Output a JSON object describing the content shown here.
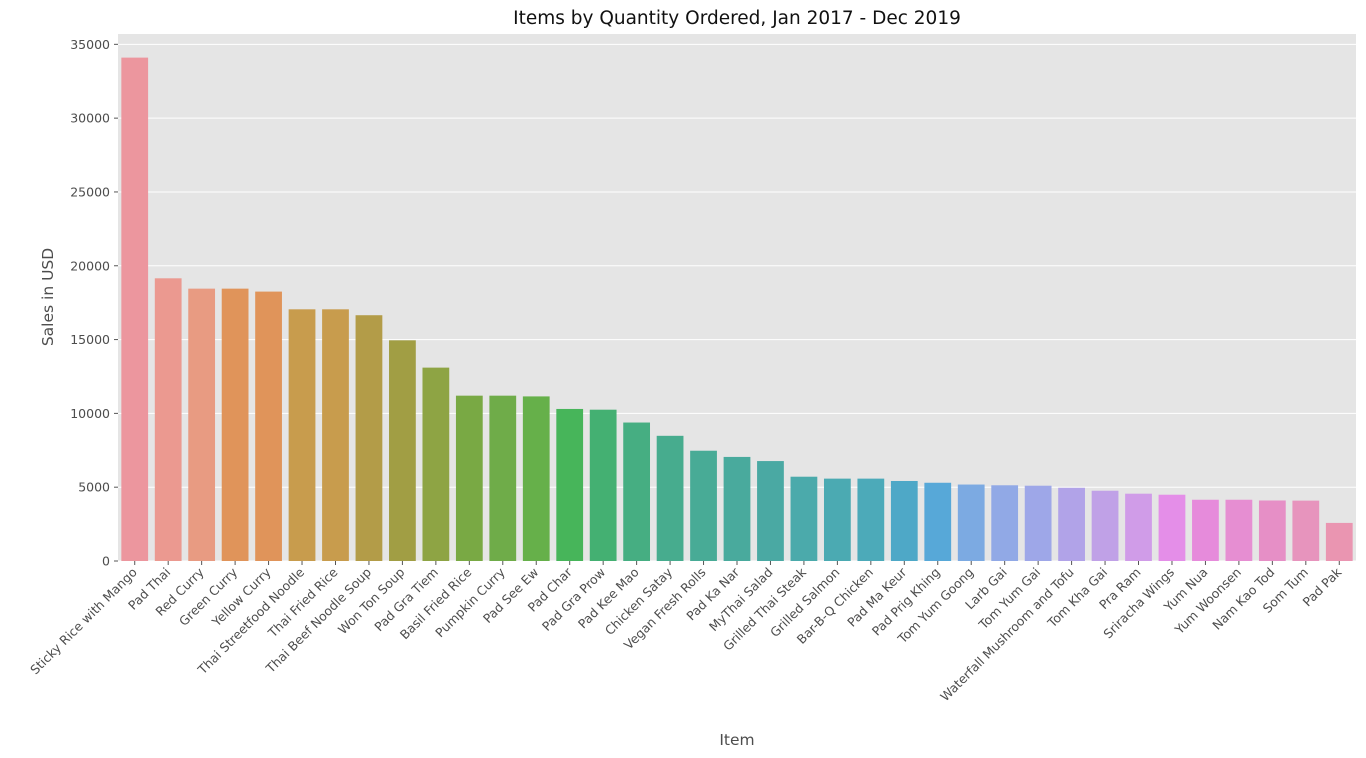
{
  "chart_data": {
    "type": "bar",
    "title": "Items by Quantity Ordered, Jan 2017 - Dec 2019",
    "xlabel": "Item",
    "ylabel": "Sales in USD",
    "ylim": [
      0,
      35700
    ],
    "yticks": [
      0,
      5000,
      10000,
      15000,
      20000,
      25000,
      30000,
      35000
    ],
    "grid": true,
    "legend": "none",
    "categories": [
      "Sticky Rice with Mango",
      "Pad Thai",
      "Red Curry",
      "Green Curry",
      "Yellow Curry",
      "Thai Streetfood Noodle",
      "Thai Fried Rice",
      "Thai Beef Noodle Soup",
      "Won Ton Soup",
      "Pad Gra Tiem",
      "Basil Fried Rice",
      "Pumpkin Curry",
      "Pad See Ew",
      "Pad Char",
      "Pad Gra Prow",
      "Pad Kee Mao",
      "Chicken Satay",
      "Vegan Fresh Rolls",
      "Pad Ka Nar",
      "MyThai Salad",
      "Grilled Thai Steak",
      "Grilled Salmon",
      "Bar-B-Q Chicken",
      "Pad Ma Keur",
      "Pad Prig Khing",
      "Tom Yum Goong",
      "Larb Gai",
      "Tom Yum Gai",
      "Waterfall Mushroom and Tofu",
      "Tom Kha Gai",
      "Pra Ram",
      "Sriracha Wings",
      "Yum Nua",
      "Yum Woonsen",
      "Nam Kao Tod",
      "Som Tum",
      "Pad Pak"
    ],
    "values": [
      34100,
      19150,
      18450,
      18450,
      18250,
      17050,
      17050,
      16650,
      14950,
      13100,
      11200,
      11200,
      11150,
      10300,
      10250,
      9380,
      8480,
      7470,
      7050,
      6770,
      5710,
      5580,
      5580,
      5420,
      5300,
      5180,
      5130,
      5100,
      4960,
      4760,
      4560,
      4490,
      4150,
      4150,
      4100,
      4090,
      2580
    ],
    "colors": [
      "#ec969e",
      "#eb9990",
      "#e89b82",
      "#e0945a",
      "#e0945a",
      "#c89c4d",
      "#c89c4d",
      "#b39c48",
      "#a19e44",
      "#8ea444",
      "#79a944",
      "#6fac49",
      "#66b04a",
      "#47b55a",
      "#44b072",
      "#46ae82",
      "#47ac8e",
      "#48ab96",
      "#49aa9d",
      "#4aa9a3",
      "#4baaab",
      "#4baab2",
      "#4caab9",
      "#4ea8c7",
      "#57a8d8",
      "#7caae2",
      "#91a9e6",
      "#9ea7e8",
      "#b1a3e8",
      "#c0a1e7",
      "#d09ce8",
      "#e48ee8",
      "#e68bdb",
      "#e68ed2",
      "#e68fc6",
      "#e794bd",
      "#ea95b1"
    ]
  }
}
